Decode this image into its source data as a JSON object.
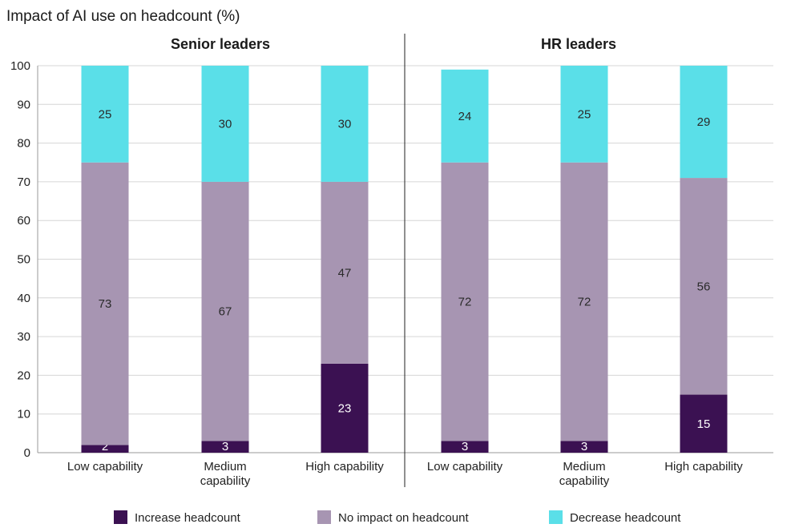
{
  "chart_data": {
    "type": "bar",
    "stacked": true,
    "title": "Impact of AI use on headcount (%)",
    "ylim": [
      0,
      100
    ],
    "yticks": [
      0,
      10,
      20,
      30,
      40,
      50,
      60,
      70,
      80,
      90,
      100
    ],
    "grid": true,
    "legend_position": "bottom",
    "series": [
      {
        "name": "Increase headcount",
        "color": "#3b1152"
      },
      {
        "name": "No impact on headcount",
        "color": "#a795b2"
      },
      {
        "name": "Decrease headcount",
        "color": "#5adfe8"
      }
    ],
    "panels": [
      {
        "title": "Senior leaders",
        "categories": [
          {
            "label": [
              "Low capability"
            ],
            "values": [
              2,
              73,
              25
            ]
          },
          {
            "label": [
              "Medium",
              "capability"
            ],
            "values": [
              3,
              67,
              30
            ]
          },
          {
            "label": [
              "High capability"
            ],
            "values": [
              23,
              47,
              30
            ]
          }
        ]
      },
      {
        "title": "HR leaders",
        "categories": [
          {
            "label": [
              "Low capability"
            ],
            "values": [
              3,
              72,
              24
            ]
          },
          {
            "label": [
              "Medium",
              "capability"
            ],
            "values": [
              3,
              72,
              25
            ]
          },
          {
            "label": [
              "High capability"
            ],
            "values": [
              15,
              56,
              29
            ]
          }
        ]
      }
    ]
  }
}
